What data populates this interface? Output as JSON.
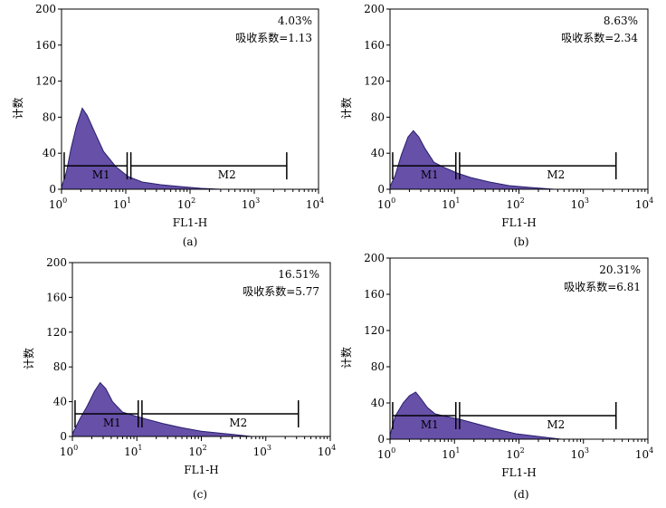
{
  "chart_data": [
    {
      "type": "area",
      "panel_label": "(a)",
      "xlabel": "FL1-H",
      "ylabel": "计数",
      "xscale": "log",
      "xlim": [
        1,
        10000
      ],
      "ylim": [
        0,
        200
      ],
      "x_ticks": [
        {
          "base": "10",
          "exp": "0"
        },
        {
          "base": "10",
          "exp": "1"
        },
        {
          "base": "10",
          "exp": "2"
        },
        {
          "base": "10",
          "exp": "3"
        },
        {
          "base": "10",
          "exp": "4"
        }
      ],
      "y_ticks": [
        "0",
        "40",
        "80",
        "120",
        "160",
        "200"
      ],
      "annotation": {
        "percent": "4.03%",
        "coefficient": "吸收系数=1.13"
      },
      "markers": [
        {
          "label": "M1",
          "x_start": 1.1,
          "x_end": 10.5,
          "y": 26
        },
        {
          "label": "M2",
          "x_start": 12,
          "x_end": 3200,
          "y": 26
        }
      ],
      "curve": {
        "x": [
          1,
          1.2,
          1.4,
          1.7,
          2.1,
          2.5,
          3.2,
          4.5,
          7,
          11,
          18,
          35,
          70,
          150,
          300
        ],
        "y": [
          2,
          20,
          45,
          70,
          90,
          82,
          65,
          42,
          25,
          14,
          8,
          5,
          3,
          1,
          0
        ]
      }
    },
    {
      "type": "area",
      "panel_label": "(b)",
      "xlabel": "FL1-H",
      "ylabel": "计数",
      "xscale": "log",
      "xlim": [
        1,
        10000
      ],
      "ylim": [
        0,
        200
      ],
      "x_ticks": [
        {
          "base": "10",
          "exp": "0"
        },
        {
          "base": "10",
          "exp": "1"
        },
        {
          "base": "10",
          "exp": "2"
        },
        {
          "base": "10",
          "exp": "3"
        },
        {
          "base": "10",
          "exp": "4"
        }
      ],
      "y_ticks": [
        "0",
        "40",
        "80",
        "120",
        "160",
        "200"
      ],
      "annotation": {
        "percent": "8.63%",
        "coefficient": "吸收系数=2.34"
      },
      "markers": [
        {
          "label": "M1",
          "x_start": 1.1,
          "x_end": 10.5,
          "y": 26
        },
        {
          "label": "M2",
          "x_start": 12,
          "x_end": 3200,
          "y": 26
        }
      ],
      "curve": {
        "x": [
          1,
          1.2,
          1.5,
          1.9,
          2.3,
          2.8,
          3.5,
          4.8,
          7,
          11,
          18,
          35,
          70,
          150,
          350
        ],
        "y": [
          3,
          15,
          38,
          58,
          65,
          58,
          45,
          30,
          24,
          18,
          13,
          8,
          4,
          2,
          0
        ]
      }
    },
    {
      "type": "area",
      "panel_label": "(c)",
      "xlabel": "FL1-H",
      "ylabel": "计数",
      "xscale": "log",
      "xlim": [
        1,
        10000
      ],
      "ylim": [
        0,
        200
      ],
      "x_ticks": [
        {
          "base": "10",
          "exp": "0"
        },
        {
          "base": "10",
          "exp": "1"
        },
        {
          "base": "10",
          "exp": "2"
        },
        {
          "base": "10",
          "exp": "3"
        },
        {
          "base": "10",
          "exp": "4"
        }
      ],
      "y_ticks": [
        "0",
        "40",
        "80",
        "120",
        "160",
        "200"
      ],
      "annotation": {
        "percent": "16.51%",
        "coefficient": "吸收系数=5.77"
      },
      "markers": [
        {
          "label": "M1",
          "x_start": 1.1,
          "x_end": 10.5,
          "y": 26
        },
        {
          "label": "M2",
          "x_start": 12,
          "x_end": 3200,
          "y": 26
        }
      ],
      "curve": {
        "x": [
          1,
          1.3,
          1.7,
          2.2,
          2.7,
          3.3,
          4.2,
          6,
          9,
          14,
          25,
          50,
          100,
          250,
          600
        ],
        "y": [
          3,
          20,
          35,
          52,
          62,
          55,
          40,
          28,
          24,
          20,
          15,
          10,
          6,
          3,
          0
        ]
      }
    },
    {
      "type": "area",
      "panel_label": "(d)",
      "xlabel": "FL1-H",
      "ylabel": "计数",
      "xscale": "log",
      "xlim": [
        1,
        10000
      ],
      "ylim": [
        0,
        200
      ],
      "x_ticks": [
        {
          "base": "10",
          "exp": "0"
        },
        {
          "base": "10",
          "exp": "1"
        },
        {
          "base": "10",
          "exp": "2"
        },
        {
          "base": "10",
          "exp": "3"
        },
        {
          "base": "10",
          "exp": "4"
        }
      ],
      "y_ticks": [
        "0",
        "40",
        "80",
        "120",
        "160",
        "200"
      ],
      "annotation": {
        "percent": "20.31%",
        "coefficient": "吸收系数=6.81"
      },
      "markers": [
        {
          "label": "M1",
          "x_start": 1.1,
          "x_end": 10.5,
          "y": 26
        },
        {
          "label": "M2",
          "x_start": 12,
          "x_end": 3200,
          "y": 26
        }
      ],
      "curve": {
        "x": [
          1,
          1.2,
          1.6,
          2,
          2.5,
          3,
          3.8,
          5,
          7.5,
          12,
          22,
          45,
          90,
          200,
          450
        ],
        "y": [
          4,
          25,
          40,
          48,
          52,
          45,
          35,
          28,
          25,
          22,
          17,
          11,
          6,
          3,
          0
        ]
      }
    }
  ],
  "colors": {
    "fill": "#6650a8",
    "stroke": "#2a1f6e",
    "axis": "#000000"
  }
}
